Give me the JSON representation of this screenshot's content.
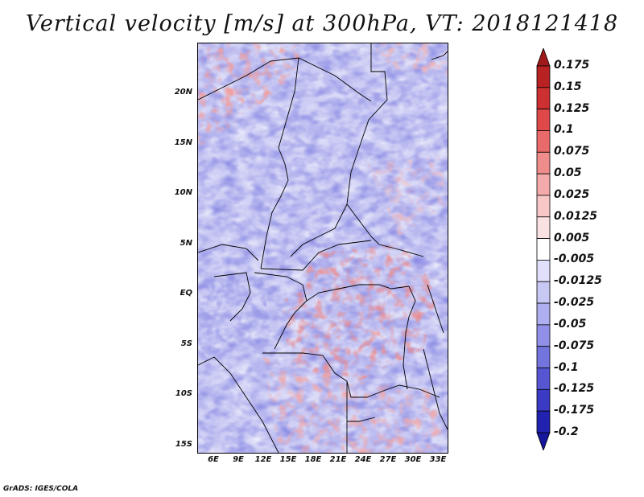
{
  "title": "Vertical velocity [m/s] at 300hPa, VT: 2018121418",
  "credit": "GrADS: IGES/COLA",
  "latitude_labels": [
    "20N",
    "15N",
    "10N",
    "5N",
    "EQ",
    "5S",
    "10S",
    "15S"
  ],
  "longitude_labels": [
    "6E",
    "9E",
    "12E",
    "15E",
    "18E",
    "21E",
    "24E",
    "27E",
    "30E",
    "33E"
  ],
  "colorbar": {
    "labels": [
      "0.175",
      "0.15",
      "0.125",
      "0.1",
      "0.075",
      "0.05",
      "0.025",
      "0.0125",
      "0.005",
      "-0.005",
      "-0.0125",
      "-0.025",
      "-0.05",
      "-0.075",
      "-0.1",
      "-0.125",
      "-0.175",
      "-0.2"
    ],
    "colors": [
      "#a01a1a",
      "#b82222",
      "#cc3030",
      "#de4848",
      "#e86a6a",
      "#ef8c8c",
      "#f4aaaa",
      "#f8c8c8",
      "#fbe2e2",
      "#ffffff",
      "#e0e0fa",
      "#c8c8f4",
      "#aeaef0",
      "#9090e8",
      "#7474de",
      "#5656d2",
      "#3a3ac4",
      "#2222b0",
      "#16169c"
    ]
  }
}
